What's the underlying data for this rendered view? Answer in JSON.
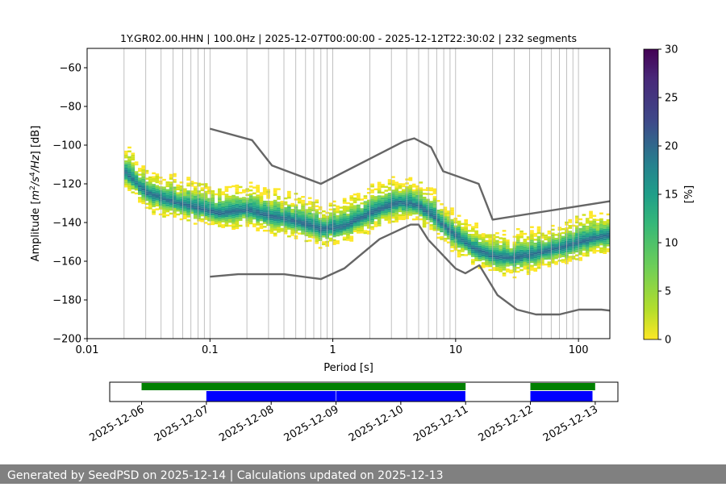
{
  "chart_data": [
    {
      "type": "heatmap",
      "title": "1Y.GR02.00.HHN | 100.0Hz | 2025-12-07T00:00:00 - 2025-12-12T22:30:02 | 232 segments",
      "xlabel": "Period [s]",
      "ylabel_prefix": "Amplitude [",
      "ylabel_suffix": "] [dB]",
      "x_scale": "log",
      "xlim": [
        0.01,
        180
      ],
      "ylim": [
        -200,
        -50
      ],
      "xticks": [
        {
          "value": 0.01,
          "label": "0.01"
        },
        {
          "value": 0.1,
          "label": "0.1"
        },
        {
          "value": 1,
          "label": "1"
        },
        {
          "value": 10,
          "label": "10"
        },
        {
          "value": 100,
          "label": "100"
        }
      ],
      "yticks": [
        {
          "value": -60,
          "label": "−60"
        },
        {
          "value": -80,
          "label": "−80"
        },
        {
          "value": -100,
          "label": "−100"
        },
        {
          "value": -120,
          "label": "−120"
        },
        {
          "value": -140,
          "label": "−140"
        },
        {
          "value": -160,
          "label": "−160"
        },
        {
          "value": -180,
          "label": "−180"
        },
        {
          "value": -200,
          "label": "−200"
        }
      ],
      "grid": "x-major-and-minor",
      "colorbar": {
        "label": "[%]",
        "range": [
          0,
          30
        ],
        "colormap": "viridis-reversed",
        "ticks": [
          {
            "value": 0,
            "label": "0"
          },
          {
            "value": 5,
            "label": "5"
          },
          {
            "value": 10,
            "label": "10"
          },
          {
            "value": 15,
            "label": "15"
          },
          {
            "value": 20,
            "label": "20"
          },
          {
            "value": 25,
            "label": "25"
          },
          {
            "value": 30,
            "label": "30"
          }
        ]
      },
      "series": [
        {
          "role": "psd-mode",
          "x": [
            0.02,
            0.03,
            0.05,
            0.08,
            0.12,
            0.2,
            0.3,
            0.5,
            0.8,
            1.2,
            2,
            3.5,
            5,
            6.5,
            9,
            14,
            20,
            30,
            50,
            100,
            180
          ],
          "y": [
            -113,
            -124,
            -129,
            -132,
            -135,
            -133,
            -136,
            -139,
            -143,
            -142,
            -135,
            -129,
            -131,
            -136,
            -144,
            -153,
            -157,
            -158,
            -155,
            -150,
            -146
          ]
        },
        {
          "role": "low-noise-model",
          "x": [
            0.1,
            0.17,
            0.4,
            0.8,
            1.24,
            2.4,
            4.3,
            5,
            6,
            10,
            12,
            15.6,
            21.9,
            31.6,
            45,
            70,
            101,
            154,
            180
          ],
          "y": [
            -168,
            -166.7,
            -166.7,
            -169.2,
            -163.7,
            -148.6,
            -141.1,
            -141.1,
            -149,
            -163.8,
            -166.2,
            -162.1,
            -177.5,
            -185,
            -187.5,
            -187.5,
            -185,
            -185,
            -185.5
          ]
        },
        {
          "role": "high-noise-model",
          "x": [
            0.1,
            0.22,
            0.32,
            0.8,
            3.8,
            4.6,
            6.3,
            7.9,
            15.4,
            20,
            180
          ],
          "y": [
            -91.5,
            -97.4,
            -110.5,
            -120,
            -98,
            -96.5,
            -101,
            -113.5,
            -120,
            -138.5,
            -129
          ]
        }
      ]
    },
    {
      "type": "timeline",
      "xlim": [
        "2025-12-05T12:12",
        "2025-12-13T08:24"
      ],
      "xticks": [
        "2025-12-06",
        "2025-12-07",
        "2025-12-08",
        "2025-12-09",
        "2025-12-10",
        "2025-12-11",
        "2025-12-12",
        "2025-12-13"
      ],
      "bars": [
        {
          "color": "#008000",
          "start": "2025-12-06T00:00",
          "end": "2025-12-11T00:00"
        },
        {
          "color": "#008000",
          "start": "2025-12-12T00:00",
          "end": "2025-12-13T00:00"
        },
        {
          "color": "#0000ff",
          "start": "2025-12-07T00:00",
          "end": "2025-12-08T23:55"
        },
        {
          "color": "#0000ff",
          "start": "2025-12-09T00:05",
          "end": "2025-12-10T23:55"
        },
        {
          "color": "#0000ff",
          "start": "2025-12-12T00:00",
          "end": "2025-12-12T23:00"
        }
      ]
    }
  ],
  "footer": {
    "text": "Generated by SeedPSD on 2025-12-14 | Calculations updated on 2025-12-13"
  }
}
